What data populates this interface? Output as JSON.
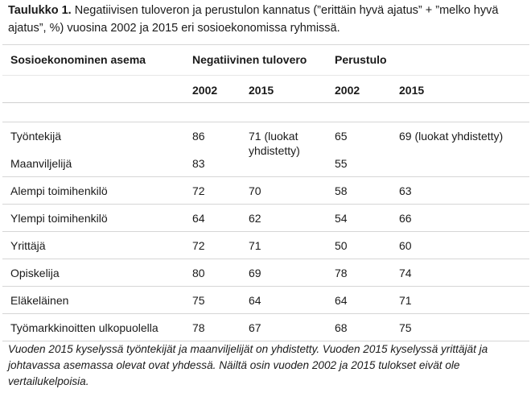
{
  "caption": {
    "label": "Taulukko 1.",
    "text": " Negatiivisen tuloveron ja perustulon kannatus (”erittäin hyvä ajatus” + ”melko hyvä ajatus”, %) vuosina 2002 ja 2015 eri sosioekonomissa ryhmissä."
  },
  "table": {
    "col_group": "Sosioekonominen asema",
    "group_neg": "Negatiivinen tulovero",
    "group_basic": "Perustulo",
    "year_a": "2002",
    "year_b": "2015",
    "year_c": "2002",
    "year_d": "2015",
    "rows": [
      {
        "label": "Työntekijä",
        "neg2002": "86",
        "neg2015": "71 (luokat yhdistetty)",
        "bas2002": "65",
        "bas2015": "69 (luokat yhdistetty)"
      },
      {
        "label": "Maanviljelijä",
        "neg2002": "83",
        "bas2002": "55"
      },
      {
        "label": "Alempi toimihenkilö",
        "neg2002": "72",
        "neg2015": "70",
        "bas2002": "58",
        "bas2015": "63"
      },
      {
        "label": "Ylempi toimihenkilö",
        "neg2002": "64",
        "neg2015": "62",
        "bas2002": "54",
        "bas2015": "66"
      },
      {
        "label": "Yrittäjä",
        "neg2002": "72",
        "neg2015": "71",
        "bas2002": "50",
        "bas2015": "60"
      },
      {
        "label": "Opiskelija",
        "neg2002": "80",
        "neg2015": "69",
        "bas2002": "78",
        "bas2015": "74"
      },
      {
        "label": "Eläkeläinen",
        "neg2002": "75",
        "neg2015": "64",
        "bas2002": "64",
        "bas2015": "71"
      },
      {
        "label": "Työmarkkinoitten ulkopuolella",
        "neg2002": "78",
        "neg2015": "67",
        "bas2002": "68",
        "bas2015": "75"
      }
    ]
  },
  "note": "Vuoden 2015 kyselyssä työntekijät ja maanviljelijät on yhdistetty. Vuoden 2015 kyselyssä yrittäjät ja johtavassa asemassa olevat ovat yhdessä. Näiltä osin vuoden 2002 ja 2015 tulokset eivät ole vertailukelpoisia."
}
